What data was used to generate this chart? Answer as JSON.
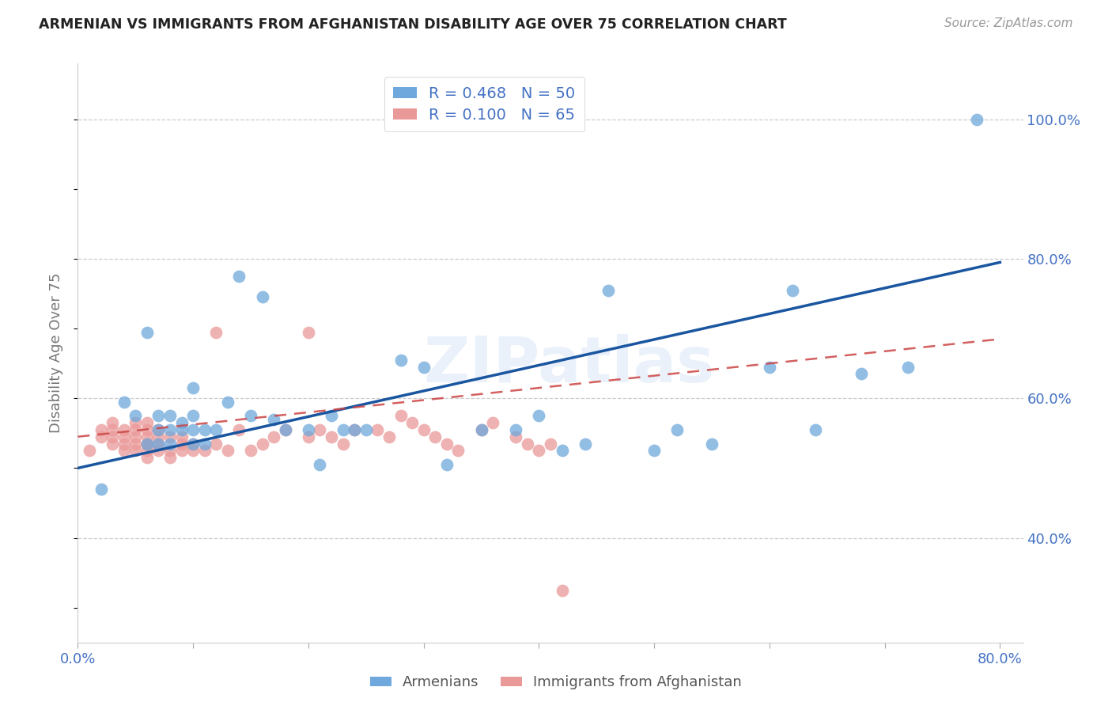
{
  "title": "ARMENIAN VS IMMIGRANTS FROM AFGHANISTAN DISABILITY AGE OVER 75 CORRELATION CHART",
  "source": "Source: ZipAtlas.com",
  "ylabel": "Disability Age Over 75",
  "xlim": [
    0.0,
    0.82
  ],
  "ylim": [
    0.25,
    1.08
  ],
  "xtick_positions": [
    0.0,
    0.1,
    0.2,
    0.3,
    0.4,
    0.5,
    0.6,
    0.7,
    0.8
  ],
  "xticklabels": [
    "0.0%",
    "",
    "",
    "",
    "",
    "",
    "",
    "",
    "80.0%"
  ],
  "ytick_positions": [
    0.4,
    0.6,
    0.8,
    1.0
  ],
  "yticklabels": [
    "40.0%",
    "60.0%",
    "80.0%",
    "100.0%"
  ],
  "legend_label1": "Armenians",
  "legend_label2": "Immigrants from Afghanistan",
  "R1": 0.468,
  "N1": 50,
  "R2": 0.1,
  "N2": 65,
  "color1": "#6fa8dc",
  "color2": "#ea9999",
  "trendline1_color": "#1a56a0",
  "trendline2_color": "#cc4444",
  "watermark": "ZIPatlas",
  "blue_x": [
    0.02,
    0.04,
    0.05,
    0.06,
    0.06,
    0.07,
    0.07,
    0.07,
    0.08,
    0.08,
    0.08,
    0.09,
    0.09,
    0.1,
    0.1,
    0.1,
    0.1,
    0.11,
    0.11,
    0.12,
    0.13,
    0.14,
    0.15,
    0.16,
    0.17,
    0.18,
    0.2,
    0.21,
    0.22,
    0.23,
    0.24,
    0.25,
    0.28,
    0.3,
    0.32,
    0.35,
    0.38,
    0.4,
    0.42,
    0.44,
    0.46,
    0.5,
    0.52,
    0.55,
    0.6,
    0.62,
    0.64,
    0.68,
    0.72,
    0.78
  ],
  "blue_y": [
    0.47,
    0.595,
    0.575,
    0.695,
    0.535,
    0.555,
    0.575,
    0.535,
    0.555,
    0.575,
    0.535,
    0.555,
    0.565,
    0.535,
    0.555,
    0.575,
    0.615,
    0.555,
    0.535,
    0.555,
    0.595,
    0.775,
    0.575,
    0.745,
    0.57,
    0.555,
    0.555,
    0.505,
    0.575,
    0.555,
    0.555,
    0.555,
    0.655,
    0.645,
    0.505,
    0.555,
    0.555,
    0.575,
    0.525,
    0.535,
    0.755,
    0.525,
    0.555,
    0.535,
    0.645,
    0.755,
    0.555,
    0.635,
    0.645,
    1.0
  ],
  "pink_x": [
    0.01,
    0.02,
    0.02,
    0.03,
    0.03,
    0.03,
    0.03,
    0.04,
    0.04,
    0.04,
    0.04,
    0.05,
    0.05,
    0.05,
    0.05,
    0.05,
    0.06,
    0.06,
    0.06,
    0.06,
    0.06,
    0.06,
    0.06,
    0.07,
    0.07,
    0.07,
    0.07,
    0.08,
    0.08,
    0.08,
    0.09,
    0.09,
    0.09,
    0.1,
    0.1,
    0.11,
    0.12,
    0.12,
    0.13,
    0.14,
    0.15,
    0.16,
    0.17,
    0.18,
    0.2,
    0.21,
    0.22,
    0.23,
    0.24,
    0.26,
    0.27,
    0.28,
    0.29,
    0.3,
    0.31,
    0.32,
    0.33,
    0.35,
    0.36,
    0.38,
    0.39,
    0.4,
    0.41,
    0.42,
    0.2
  ],
  "pink_y": [
    0.525,
    0.545,
    0.555,
    0.535,
    0.545,
    0.555,
    0.565,
    0.525,
    0.535,
    0.545,
    0.555,
    0.525,
    0.535,
    0.545,
    0.555,
    0.565,
    0.515,
    0.525,
    0.535,
    0.545,
    0.555,
    0.565,
    0.535,
    0.525,
    0.535,
    0.545,
    0.555,
    0.515,
    0.525,
    0.545,
    0.525,
    0.535,
    0.545,
    0.525,
    0.535,
    0.525,
    0.535,
    0.695,
    0.525,
    0.555,
    0.525,
    0.535,
    0.545,
    0.555,
    0.545,
    0.555,
    0.545,
    0.535,
    0.555,
    0.555,
    0.545,
    0.575,
    0.565,
    0.555,
    0.545,
    0.535,
    0.525,
    0.555,
    0.565,
    0.545,
    0.535,
    0.525,
    0.535,
    0.325,
    0.695
  ],
  "trendline1_x": [
    0.0,
    0.8
  ],
  "trendline1_y": [
    0.5,
    0.795
  ],
  "trendline2_x": [
    0.0,
    0.8
  ],
  "trendline2_y": [
    0.545,
    0.685
  ]
}
